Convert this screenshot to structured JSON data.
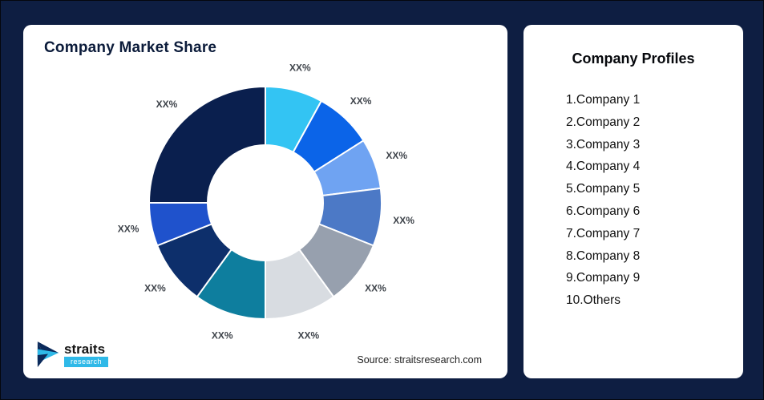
{
  "page": {
    "background_color": "#0e1e42"
  },
  "chart_card": {
    "title": "Company Market Share",
    "source": "Source: straitsresearch.com"
  },
  "logo": {
    "brand": "straits",
    "sub": "research",
    "accent_color": "#2fb9e8",
    "dark_color": "#0b2a5b"
  },
  "profiles": {
    "title": "Company Profiles",
    "items": [
      "1.Company 1",
      "2.Company 2",
      "3.Company 3",
      "4.Company 4",
      "5.Company 5",
      "6.Company 6",
      "7.Company 7",
      "8.Company 8",
      "9.Company 9",
      "10.Others"
    ]
  },
  "chart_data": {
    "type": "pie",
    "subtype": "donut",
    "title": "Company Market Share",
    "labels": [
      "Company 1",
      "Company 2",
      "Company 3",
      "Company 4",
      "Company 5",
      "Company 6",
      "Company 7",
      "Company 8",
      "Company 9",
      "Others"
    ],
    "display_labels": [
      "XX%",
      "XX%",
      "XX%",
      "XX%",
      "XX%",
      "XX%",
      "XX%",
      "XX%",
      "XX%",
      "XX%"
    ],
    "values": [
      8,
      8,
      7,
      8,
      9,
      10,
      10,
      9,
      6,
      25
    ],
    "values_note": "data labels shown as placeholder XX%; numeric proportions estimated from slice angles",
    "colors": [
      "#33c4f3",
      "#0b64e8",
      "#6fa3f2",
      "#4c79c6",
      "#97a0ae",
      "#d8dce1",
      "#0e7e9e",
      "#0d2f6b",
      "#1f52cc",
      "#0a1f4e"
    ],
    "start_angle_deg_from_top": 0,
    "direction": "clockwise",
    "inner_radius_ratio": 0.5,
    "legend": "none",
    "slice_stroke": "#ffffff"
  }
}
